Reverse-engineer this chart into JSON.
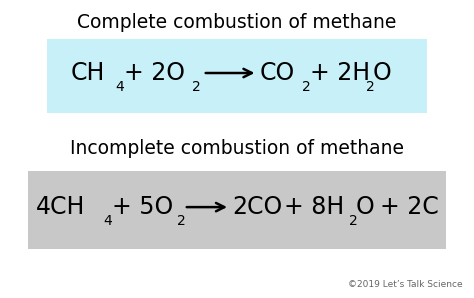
{
  "title1": "Complete combustion of methane",
  "title2": "Incomplete combustion of methane",
  "eq1_box_color": "#c8f0f8",
  "eq2_box_color": "#c8c8c8",
  "bg_color": "#ffffff",
  "copyright": "©2019 Let’s Talk Science",
  "title_fontsize": 13.5,
  "eq_fontsize": 17,
  "sub_fontsize": 10,
  "copyright_fontsize": 6.5,
  "figsize": [
    4.74,
    2.98
  ],
  "dpi": 100
}
